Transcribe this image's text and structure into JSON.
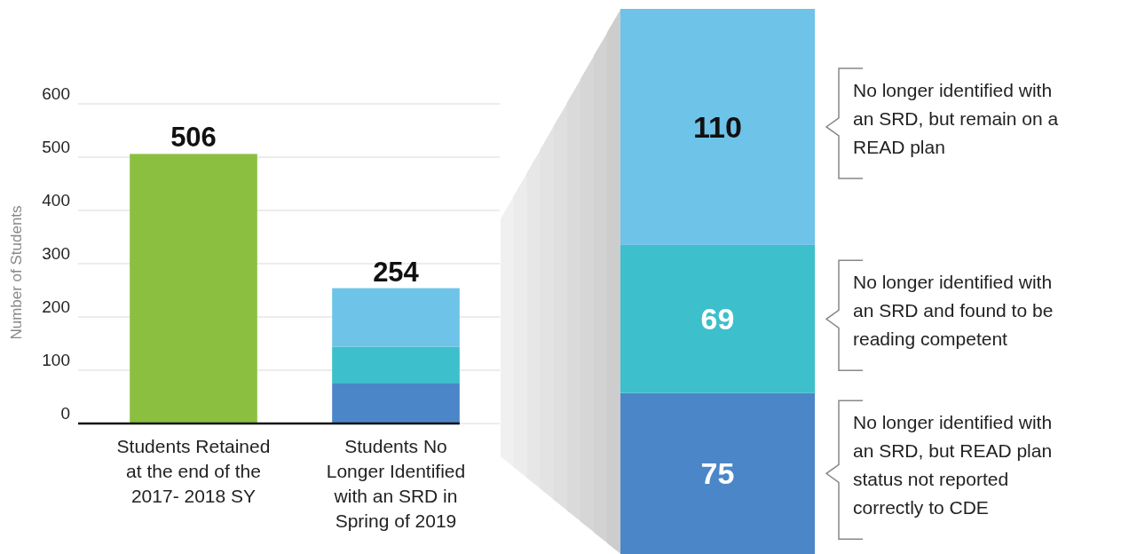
{
  "chart_data": [
    {
      "type": "bar",
      "stacked": true,
      "ylabel": "Number of Students",
      "categories": [
        "Students Retained at the end of the 2017- 2018 SY",
        "Students No Longer Identified with an SRD in Spring of 2019"
      ],
      "series": [
        {
          "color": "#8bbf3f",
          "values": [
            506,
            null
          ]
        },
        {
          "color": "#4a86c8",
          "values": [
            null,
            75
          ]
        },
        {
          "color": "#3dbfcc",
          "values": [
            null,
            69
          ]
        },
        {
          "color": "#6ec3e8",
          "values": [
            null,
            110
          ]
        }
      ],
      "totals": [
        "506",
        "254"
      ],
      "ylim": [
        0,
        600
      ],
      "yticks": [
        0,
        100,
        200,
        300,
        400,
        500,
        600
      ],
      "grid": "y"
    },
    {
      "type": "bar",
      "stacked": true,
      "categories": [
        null
      ],
      "series": [
        {
          "name": "No longer identified with an SRD, but READ plan status not reported correctly to CDE",
          "color": "#4a86c8",
          "values": [
            75
          ]
        },
        {
          "name": "No longer identified with an SRD and found to be reading competent",
          "color": "#3dbfcc",
          "values": [
            69
          ]
        },
        {
          "name": "No longer identified with an SRD, but remain on a READ plan",
          "color": "#6ec3e8",
          "values": [
            110
          ]
        }
      ],
      "data_labels": true,
      "legend": "right"
    }
  ]
}
